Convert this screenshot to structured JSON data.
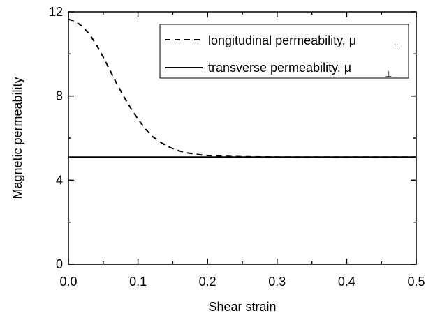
{
  "chart_data": {
    "type": "line",
    "title": "",
    "xlabel": "Shear strain",
    "ylabel": "Magnetic permeability",
    "xlim": [
      0.0,
      0.5
    ],
    "ylim": [
      0,
      12
    ],
    "x_ticks": [
      0.0,
      0.1,
      0.2,
      0.3,
      0.4,
      0.5
    ],
    "x_tick_labels": [
      "0.0",
      "0.1",
      "0.2",
      "0.3",
      "0.4",
      "0.5"
    ],
    "y_ticks": [
      0,
      4,
      8,
      12
    ],
    "y_tick_labels": [
      "0",
      "4",
      "8",
      "12"
    ],
    "grid": false,
    "legend_position": "top-right",
    "series": [
      {
        "name": "longitudinal permeability, μ",
        "subscript": "II",
        "style": "dashed",
        "color": "#000000",
        "x": [
          0.0,
          0.01,
          0.02,
          0.03,
          0.04,
          0.05,
          0.06,
          0.07,
          0.08,
          0.09,
          0.1,
          0.11,
          0.12,
          0.13,
          0.14,
          0.15,
          0.16,
          0.17,
          0.18,
          0.19,
          0.2,
          0.22,
          0.24,
          0.26,
          0.3,
          0.35,
          0.4,
          0.45,
          0.5
        ],
        "values": [
          11.65,
          11.55,
          11.3,
          10.95,
          10.45,
          9.85,
          9.2,
          8.55,
          7.95,
          7.4,
          6.9,
          6.45,
          6.1,
          5.85,
          5.65,
          5.5,
          5.38,
          5.3,
          5.25,
          5.2,
          5.17,
          5.14,
          5.12,
          5.11,
          5.1,
          5.1,
          5.1,
          5.1,
          5.1
        ]
      },
      {
        "name": "transverse permeability, μ",
        "subscript": "⊥",
        "style": "solid",
        "color": "#000000",
        "x": [
          0.0,
          0.5
        ],
        "values": [
          5.1,
          5.1
        ]
      }
    ]
  }
}
